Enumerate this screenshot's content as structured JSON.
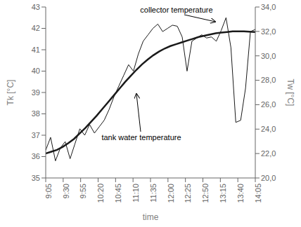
{
  "chart_data": {
    "type": "line",
    "title": "",
    "xlabel": "time",
    "ylabel": "Tk [°C]",
    "y2label": "Tw [°C]",
    "xlim": [
      0,
      12
    ],
    "xticks": [
      {
        "value": 0,
        "label": "9:05"
      },
      {
        "value": 1,
        "label": "9:30"
      },
      {
        "value": 2,
        "label": "9:55"
      },
      {
        "value": 3,
        "label": "10:20"
      },
      {
        "value": 4,
        "label": "10:45"
      },
      {
        "value": 5,
        "label": "11:10"
      },
      {
        "value": 6,
        "label": "11:35"
      },
      {
        "value": 7,
        "label": "12:00"
      },
      {
        "value": 8,
        "label": "12:25"
      },
      {
        "value": 9,
        "label": "12:50"
      },
      {
        "value": 10,
        "label": "13:15"
      },
      {
        "value": 11,
        "label": "13:40"
      },
      {
        "value": 12,
        "label": "14:05"
      }
    ],
    "ylim": [
      35,
      43
    ],
    "yticks": [
      35,
      36,
      37,
      38,
      39,
      40,
      41,
      42,
      43
    ],
    "y2lim": [
      20.0,
      34.0
    ],
    "y2ticks": [
      {
        "value": 20.0,
        "label": "20,0"
      },
      {
        "value": 22.0,
        "label": "22,0"
      },
      {
        "value": 24.0,
        "label": "24,0"
      },
      {
        "value": 26.0,
        "label": "26,0"
      },
      {
        "value": 28.0,
        "label": "28,0"
      },
      {
        "value": 30.0,
        "label": "30,0"
      },
      {
        "value": 32.0,
        "label": "32,0"
      },
      {
        "value": 34.0,
        "label": "34,0"
      }
    ],
    "grid": false,
    "series": [
      {
        "color": "#1a1a1a",
        "axis": "y",
        "x": [
          0,
          0.2791,
          0.5581,
          0.8372,
          1.1163,
          1.3953,
          1.6744,
          1.9535,
          2.2326,
          2.5116,
          2.7907,
          3.0698,
          3.3488,
          3.6279,
          3.907,
          4.186,
          4.4651,
          4.7442,
          5.0233,
          5.3023,
          5.5814,
          5.8605,
          6.1395,
          6.4186,
          6.6977,
          6.9767,
          7.2558,
          7.5349,
          7.814,
          8.093,
          8.3721,
          8.6512,
          8.9302,
          9.2093,
          9.4884,
          9.7674,
          10.0465,
          10.3256,
          10.6047,
          10.8837,
          11.1628,
          11.4419,
          11.7209,
          12
        ],
        "values": [
          36.3,
          36.9,
          35.8,
          36.4,
          36.7,
          35.9,
          36.6,
          37.3,
          37.0,
          37.5,
          37.1,
          37.4,
          37.7,
          38.2,
          38.8,
          39.3,
          39.8,
          40.3,
          40.0,
          40.8,
          41.4,
          41.7,
          42.0,
          42.2,
          41.85,
          42.0,
          42.15,
          42.1,
          41.6,
          40.0,
          41.4,
          41.55,
          41.7,
          41.55,
          41.6,
          41.4,
          41.9,
          42.5,
          41.1,
          37.6,
          37.7,
          39.2,
          41.85,
          41.95
        ]
      },
      {
        "color": "#1a1a1a",
        "axis": "y2",
        "x": [
          0,
          0.3243,
          0.6486,
          0.973,
          1.2973,
          1.6216,
          1.9459,
          2.2703,
          2.5946,
          2.9189,
          3.2432,
          3.5676,
          3.8919,
          4.2162,
          4.5405,
          4.8649,
          5.1892,
          5.5135,
          5.8378,
          6.1622,
          6.4865,
          6.8108,
          7.1351,
          7.4595,
          7.7838,
          8.1081,
          8.4324,
          8.7568,
          9.0811,
          9.4054,
          9.7297,
          10.0541,
          10.3784,
          10.7027,
          11.027,
          11.3514,
          11.6757,
          12
        ],
        "values": [
          22.0,
          22.15,
          22.3,
          22.55,
          22.85,
          23.2,
          23.65,
          24.1,
          24.6,
          25.1,
          25.65,
          26.2,
          26.75,
          27.3,
          27.85,
          28.35,
          28.85,
          29.3,
          29.7,
          30.05,
          30.35,
          30.6,
          30.8,
          30.95,
          31.1,
          31.25,
          31.4,
          31.55,
          31.65,
          31.75,
          31.85,
          31.9,
          31.95,
          32.0,
          32.0,
          32.0,
          31.98,
          31.95
        ]
      }
    ],
    "annotations": [
      "collector temperature",
      "tank water temperature"
    ]
  }
}
